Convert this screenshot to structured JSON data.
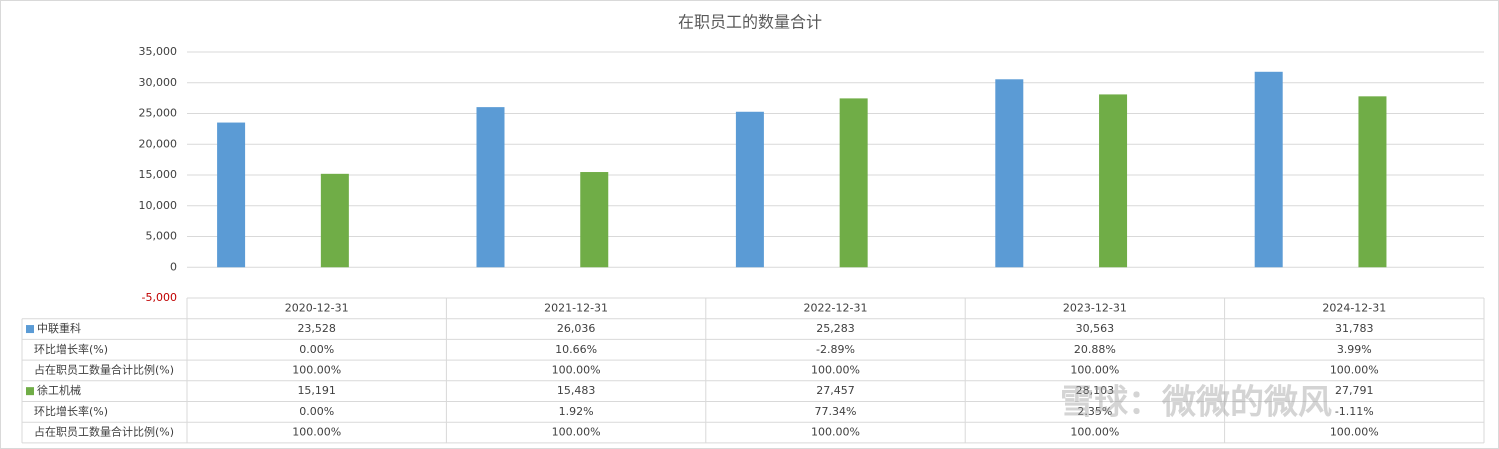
{
  "chart_data": {
    "type": "bar",
    "title": "在职员工的数量合计",
    "categories": [
      "2020-12-31",
      "2021-12-31",
      "2022-12-31",
      "2023-12-31",
      "2024-12-31"
    ],
    "series": [
      {
        "name": "中联重科",
        "color": "#5b9bd5",
        "values": [
          23528,
          26036,
          25283,
          30563,
          31783
        ],
        "value_labels": [
          "23,528",
          "26,036",
          "25,283",
          "30,563",
          "31,783"
        ],
        "table_rows": [
          {
            "label": "环比增长率(%)",
            "cells": [
              "0.00%",
              "10.66%",
              "-2.89%",
              "20.88%",
              "3.99%"
            ]
          },
          {
            "label": "占在职员工数量合计比例(%)",
            "cells": [
              "100.00%",
              "100.00%",
              "100.00%",
              "100.00%",
              "100.00%"
            ]
          }
        ]
      },
      {
        "name": "徐工机械",
        "color": "#70ad47",
        "values": [
          15191,
          15483,
          27457,
          28103,
          27791
        ],
        "value_labels": [
          "15,191",
          "15,483",
          "27,457",
          "28,103",
          "27,791"
        ],
        "table_rows": [
          {
            "label": "环比增长率(%)",
            "cells": [
              "0.00%",
              "1.92%",
              "77.34%",
              "2.35%",
              "-1.11%"
            ]
          },
          {
            "label": "占在职员工数量合计比例(%)",
            "cells": [
              "100.00%",
              "100.00%",
              "100.00%",
              "100.00%",
              "100.00%"
            ]
          }
        ]
      }
    ],
    "ylim": [
      -5000,
      35000
    ],
    "yticks": [
      {
        "value": -5000,
        "label": "-5,000"
      },
      0,
      {
        "value": 5000,
        "label": "5,000"
      },
      {
        "value": 10000,
        "label": "10,000"
      },
      {
        "value": 15000,
        "label": "15,000"
      },
      {
        "value": 20000,
        "label": "20,000"
      },
      {
        "value": 25000,
        "label": "25,000"
      },
      {
        "value": 30000,
        "label": "30,000"
      },
      {
        "value": 35000,
        "label": "35,000"
      }
    ],
    "grid": true,
    "negative_tick_color": "#c00000"
  },
  "watermark": "雪球：微微的微风"
}
